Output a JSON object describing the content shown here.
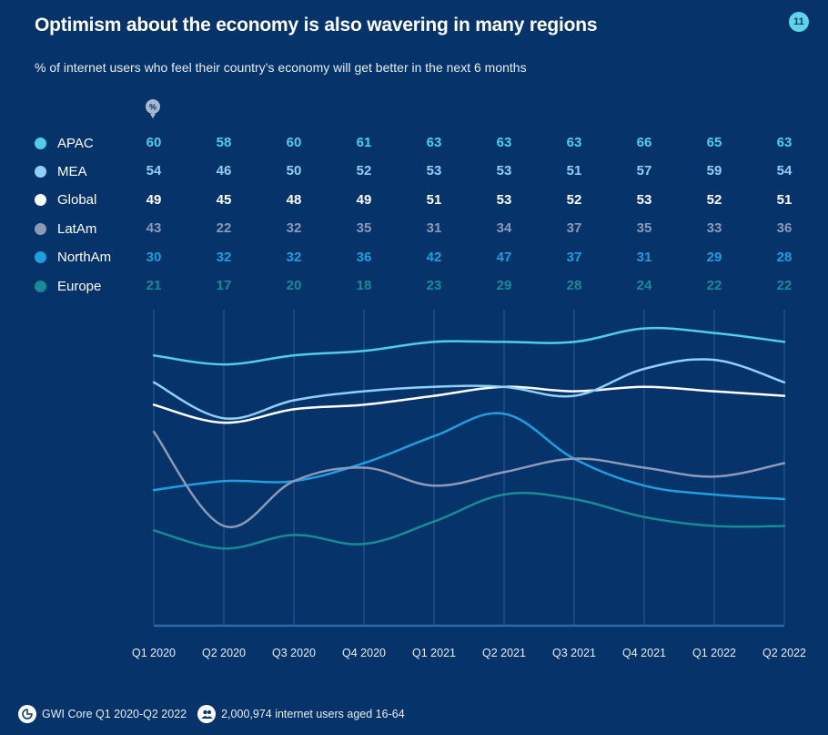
{
  "header": {
    "title": "Optimism about the economy is also wavering in many regions",
    "page_number": "11",
    "subtitle": "% of internet users who feel their country’s economy will get better in the next 6 months",
    "unit_marker": "%"
  },
  "chart_data": {
    "type": "line",
    "categories": [
      "Q1 2020",
      "Q2 2020",
      "Q3 2020",
      "Q4 2020",
      "Q1 2021",
      "Q2 2021",
      "Q3 2021",
      "Q4 2021",
      "Q1 2022",
      "Q2 2022"
    ],
    "series": [
      {
        "name": "APAC",
        "color": "#4fcfe6",
        "values": [
          60,
          58,
          60,
          61,
          63,
          63,
          63,
          66,
          65,
          63
        ]
      },
      {
        "name": "MEA",
        "color": "#8fd0f5",
        "values": [
          54,
          46,
          50,
          52,
          53,
          53,
          51,
          57,
          59,
          54
        ]
      },
      {
        "name": "Global",
        "color": "#ffffff",
        "values": [
          49,
          45,
          48,
          49,
          51,
          53,
          52,
          53,
          52,
          51
        ]
      },
      {
        "name": "LatAm",
        "color": "#8c9ab8",
        "values": [
          43,
          22,
          32,
          35,
          31,
          34,
          37,
          35,
          33,
          36
        ]
      },
      {
        "name": "NorthAm",
        "color": "#1e9fe0",
        "values": [
          30,
          32,
          32,
          36,
          42,
          47,
          37,
          31,
          29,
          28
        ]
      },
      {
        "name": "Europe",
        "color": "#168c96",
        "values": [
          21,
          17,
          20,
          18,
          23,
          29,
          28,
          24,
          22,
          22
        ]
      }
    ],
    "ylim": [
      0,
      70
    ],
    "legend": "left",
    "grid": "vertical"
  },
  "footer": {
    "source": "GWI Core Q1 2020-Q2 2022",
    "sample": "2,000,974 internet users aged 16-64"
  }
}
